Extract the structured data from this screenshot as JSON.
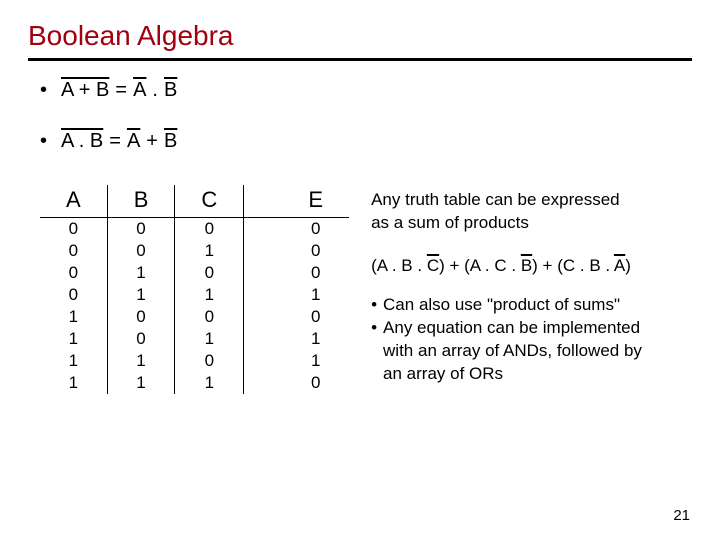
{
  "title": "Boolean Algebra",
  "title_color": "#a00010",
  "laws": {
    "law1": {
      "lhs": "A + B",
      "eq": "=",
      "rhs_a": "A",
      "dot": ".",
      "rhs_b": "B"
    },
    "law2": {
      "lhs": "A . B",
      "eq": "=",
      "rhs_a": "A",
      "plus": "+",
      "rhs_b": "B"
    }
  },
  "truth": {
    "headers": [
      "A",
      "B",
      "C",
      "",
      "E"
    ],
    "rows": [
      [
        "0",
        "0",
        "0",
        "",
        "0"
      ],
      [
        "0",
        "0",
        "1",
        "",
        "0"
      ],
      [
        "0",
        "1",
        "0",
        "",
        "0"
      ],
      [
        "0",
        "1",
        "1",
        "",
        "1"
      ],
      [
        "1",
        "0",
        "0",
        "",
        "0"
      ],
      [
        "1",
        "0",
        "1",
        "",
        "1"
      ],
      [
        "1",
        "1",
        "0",
        "",
        "1"
      ],
      [
        "1",
        "1",
        "1",
        "",
        "0"
      ]
    ]
  },
  "notes": {
    "lead1": "Any truth table can be expressed",
    "lead2": "as a sum of products",
    "expr": {
      "t1": "(A . B . ",
      "c": "C",
      "t2": ") + (A . C . ",
      "b": "B",
      "t3": ") + (C . B . ",
      "a": "A",
      "t4": ")"
    },
    "b1": "Can also use \"product of sums\"",
    "b2a": "Any equation can be implemented",
    "b2b": "with an array of ANDs, followed by",
    "b2c": "an array of ORs"
  },
  "page": "21"
}
